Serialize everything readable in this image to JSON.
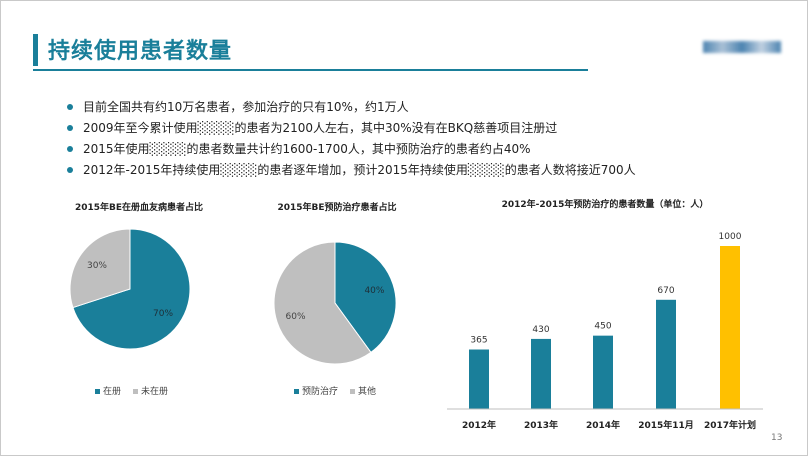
{
  "slide": {
    "title": "持续使用患者数量",
    "page_number": "13",
    "bullets": [
      "目前全国共有约10万名患者，参加治疗的只有10%，约1万人",
      "2009年至今累计使用░░░░的患者为2100人左右，其中30%没有在BKQ慈善项目注册过",
      "2015年使用░░░░的患者数量共计约1600-1700人，其中预防治疗的患者约占40%",
      "2012年-2015年持续使用░░░░的患者逐年增加，预计2015年持续使用░░░░的患者人数将接近700人"
    ]
  },
  "colors": {
    "teal": "#1a7f9a",
    "gray": "#bfbfbf",
    "gold": "#ffc000",
    "bar": "#1a7f9a"
  },
  "chart_data": [
    {
      "type": "pie",
      "title": "2015年BE在册血友病患者占比",
      "categories": [
        "在册",
        "未在册"
      ],
      "values": [
        70,
        30
      ],
      "labels": [
        "70%",
        "30%"
      ],
      "colors": [
        "#1a7f9a",
        "#bfbfbf"
      ],
      "legend": "bottom"
    },
    {
      "type": "pie",
      "title": "2015年BE预防治疗患者占比",
      "categories": [
        "预防治疗",
        "其他"
      ],
      "values": [
        40,
        60
      ],
      "labels": [
        "40%",
        "60%"
      ],
      "colors": [
        "#1a7f9a",
        "#bfbfbf"
      ],
      "legend": "bottom"
    },
    {
      "type": "bar",
      "title": "2012年-2015年预防治疗的患者数量（单位：人）",
      "categories": [
        "2012年",
        "2013年",
        "2014年",
        "2015年11月",
        "2017年计划"
      ],
      "values": [
        365,
        430,
        450,
        670,
        1000
      ],
      "colors": [
        "#1a7f9a",
        "#1a7f9a",
        "#1a7f9a",
        "#1a7f9a",
        "#ffc000"
      ],
      "ylim": [
        0,
        1000
      ],
      "grid": false
    }
  ]
}
